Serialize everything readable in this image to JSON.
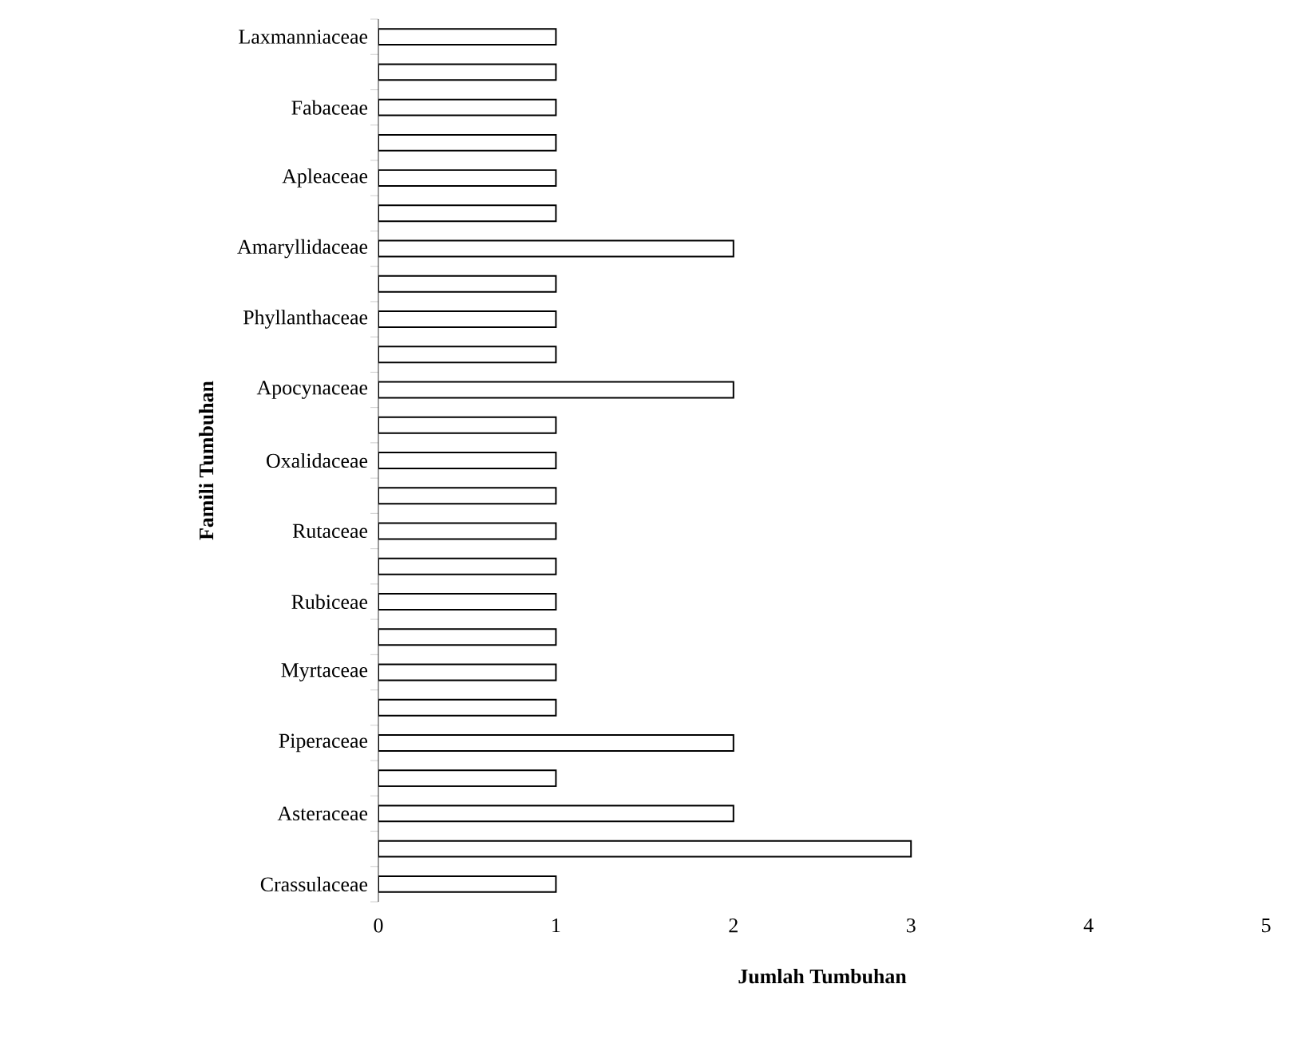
{
  "chart_data": {
    "type": "bar",
    "orientation": "horizontal",
    "xlabel": "Jumlah Tumbuhan",
    "ylabel": "Famili Tumbuhan",
    "categories": [
      "Laxmanniaceae",
      null,
      "Fabaceae",
      null,
      "Apleaceae",
      null,
      "Amaryllidaceae",
      null,
      "Phyllanthaceae",
      null,
      "Apocynaceae",
      null,
      "Oxalidaceae",
      null,
      "Rutaceae",
      null,
      "Rubiceae",
      null,
      "Myrtaceae",
      null,
      "Piperaceae",
      null,
      "Asteraceae",
      null,
      "Crassulaceae"
    ],
    "values": [
      1,
      1,
      1,
      1,
      1,
      1,
      2,
      1,
      1,
      1,
      2,
      1,
      1,
      1,
      1,
      1,
      1,
      1,
      1,
      1,
      2,
      1,
      2,
      3,
      1
    ],
    "color": "#ffffff",
    "xlim": [
      0,
      5
    ],
    "xticks": [
      0,
      1,
      2,
      3,
      4,
      5
    ]
  }
}
